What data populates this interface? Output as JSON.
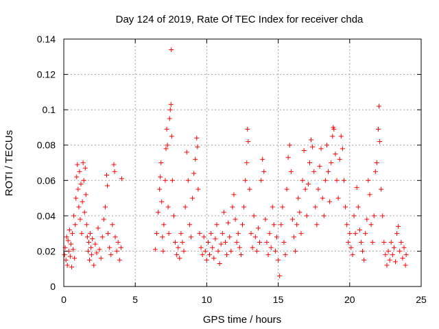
{
  "chart_data": {
    "type": "scatter",
    "title": "Day 124 of 2019, Rate Of TEC Index for receiver chda",
    "xlabel": "GPS time / hours",
    "ylabel": "ROTI / TECUs",
    "xlim": [
      0,
      25
    ],
    "ylim": [
      0,
      0.14
    ],
    "x_ticks": [
      0,
      5,
      10,
      15,
      20,
      25
    ],
    "x_tick_labels": [
      "0",
      "5",
      "10",
      "15",
      "20",
      "25"
    ],
    "y_ticks": [
      0,
      0.02,
      0.04,
      0.06,
      0.08,
      0.1,
      0.12,
      0.14
    ],
    "y_tick_labels": [
      "0",
      "0.02",
      "0.04",
      "0.06",
      "0.08",
      "0.1",
      "0.12",
      "0.14"
    ],
    "grid": true,
    "marker": "plus",
    "color": "#ff0000",
    "data_gap_hours": [
      4.1,
      6.3
    ],
    "series": [
      {
        "name": "ROTI",
        "points": [
          [
            0.05,
            0.018
          ],
          [
            0.1,
            0.022
          ],
          [
            0.15,
            0.015
          ],
          [
            0.2,
            0.028
          ],
          [
            0.25,
            0.012
          ],
          [
            0.3,
            0.026
          ],
          [
            0.35,
            0.02
          ],
          [
            0.4,
            0.032
          ],
          [
            0.45,
            0.017
          ],
          [
            0.5,
            0.024
          ],
          [
            0.55,
            0.011
          ],
          [
            0.6,
            0.03
          ],
          [
            0.65,
            0.021
          ],
          [
            0.7,
            0.04
          ],
          [
            0.75,
            0.016
          ],
          [
            0.8,
            0.035
          ],
          [
            0.85,
            0.05
          ],
          [
            0.9,
            0.062
          ],
          [
            0.95,
            0.069
          ],
          [
            1.0,
            0.055
          ],
          [
            1.05,
            0.045
          ],
          [
            1.1,
            0.065
          ],
          [
            1.15,
            0.038
          ],
          [
            1.2,
            0.058
          ],
          [
            1.25,
            0.03
          ],
          [
            1.3,
            0.048
          ],
          [
            1.35,
            0.07
          ],
          [
            1.4,
            0.06
          ],
          [
            1.45,
            0.042
          ],
          [
            1.5,
            0.067
          ],
          [
            1.55,
            0.052
          ],
          [
            1.6,
            0.035
          ],
          [
            1.65,
            0.028
          ],
          [
            1.7,
            0.02
          ],
          [
            1.75,
            0.025
          ],
          [
            1.8,
            0.015
          ],
          [
            1.85,
            0.03
          ],
          [
            1.9,
            0.022
          ],
          [
            1.95,
            0.018
          ],
          [
            2.0,
            0.027
          ],
          [
            2.1,
            0.012
          ],
          [
            2.2,
            0.024
          ],
          [
            2.3,
            0.019
          ],
          [
            2.4,
            0.033
          ],
          [
            2.5,
            0.021
          ],
          [
            2.6,
            0.016
          ],
          [
            2.7,
            0.028
          ],
          [
            2.8,
            0.038
          ],
          [
            2.9,
            0.045
          ],
          [
            3.0,
            0.063
          ],
          [
            3.05,
            0.057
          ],
          [
            3.1,
            0.03
          ],
          [
            3.2,
            0.022
          ],
          [
            3.3,
            0.018
          ],
          [
            3.4,
            0.035
          ],
          [
            3.5,
            0.069
          ],
          [
            3.55,
            0.065
          ],
          [
            3.6,
            0.028
          ],
          [
            3.7,
            0.02
          ],
          [
            3.8,
            0.025
          ],
          [
            3.9,
            0.015
          ],
          [
            4.0,
            0.022
          ],
          [
            4.05,
            0.061
          ],
          [
            6.4,
            0.021
          ],
          [
            6.5,
            0.03
          ],
          [
            6.6,
            0.042
          ],
          [
            6.7,
            0.055
          ],
          [
            6.75,
            0.062
          ],
          [
            6.8,
            0.07
          ],
          [
            6.85,
            0.048
          ],
          [
            6.9,
            0.028
          ],
          [
            6.95,
            0.02
          ],
          [
            7.0,
            0.035
          ],
          [
            7.1,
            0.06
          ],
          [
            7.15,
            0.078
          ],
          [
            7.2,
            0.089
          ],
          [
            7.25,
            0.08
          ],
          [
            7.3,
            0.045
          ],
          [
            7.35,
            0.03
          ],
          [
            7.4,
            0.095
          ],
          [
            7.45,
            0.1
          ],
          [
            7.5,
            0.103
          ],
          [
            7.52,
            0.134
          ],
          [
            7.55,
            0.085
          ],
          [
            7.6,
            0.06
          ],
          [
            7.7,
            0.04
          ],
          [
            7.8,
            0.025
          ],
          [
            7.9,
            0.018
          ],
          [
            8.0,
            0.022
          ],
          [
            8.1,
            0.016
          ],
          [
            8.2,
            0.03
          ],
          [
            8.3,
            0.025
          ],
          [
            8.4,
            0.02
          ],
          [
            8.5,
            0.045
          ],
          [
            8.6,
            0.076
          ],
          [
            8.7,
            0.06
          ],
          [
            8.8,
            0.035
          ],
          [
            8.9,
            0.028
          ],
          [
            9.0,
            0.05
          ],
          [
            9.1,
            0.064
          ],
          [
            9.2,
            0.072
          ],
          [
            9.3,
            0.084
          ],
          [
            9.35,
            0.079
          ],
          [
            9.4,
            0.055
          ],
          [
            9.5,
            0.03
          ],
          [
            9.6,
            0.022
          ],
          [
            9.7,
            0.018
          ],
          [
            9.8,
            0.028
          ],
          [
            9.9,
            0.02
          ],
          [
            10.0,
            0.015
          ],
          [
            10.1,
            0.025
          ],
          [
            10.2,
            0.018
          ],
          [
            10.3,
            0.03
          ],
          [
            10.4,
            0.022
          ],
          [
            10.5,
            0.016
          ],
          [
            10.6,
            0.027
          ],
          [
            10.7,
            0.035
          ],
          [
            10.8,
            0.02
          ],
          [
            10.9,
            0.013
          ],
          [
            11.0,
            0.024
          ],
          [
            11.1,
            0.03
          ],
          [
            11.2,
            0.042
          ],
          [
            11.3,
            0.025
          ],
          [
            11.4,
            0.018
          ],
          [
            11.5,
            0.036
          ],
          [
            11.6,
            0.028
          ],
          [
            11.7,
            0.02
          ],
          [
            11.8,
            0.045
          ],
          [
            11.9,
            0.052
          ],
          [
            12.0,
            0.038
          ],
          [
            12.1,
            0.025
          ],
          [
            12.2,
            0.03
          ],
          [
            12.3,
            0.022
          ],
          [
            12.4,
            0.018
          ],
          [
            12.5,
            0.035
          ],
          [
            12.6,
            0.045
          ],
          [
            12.7,
            0.06
          ],
          [
            12.8,
            0.07
          ],
          [
            12.85,
            0.089
          ],
          [
            12.9,
            0.082
          ],
          [
            13.0,
            0.055
          ],
          [
            13.1,
            0.03
          ],
          [
            13.2,
            0.022
          ],
          [
            13.3,
            0.04
          ],
          [
            13.4,
            0.028
          ],
          [
            13.5,
            0.02
          ],
          [
            13.6,
            0.033
          ],
          [
            13.7,
            0.025
          ],
          [
            13.8,
            0.06
          ],
          [
            13.9,
            0.072
          ],
          [
            14.0,
            0.065
          ],
          [
            14.1,
            0.038
          ],
          [
            14.2,
            0.025
          ],
          [
            14.3,
            0.018
          ],
          [
            14.4,
            0.03
          ],
          [
            14.5,
            0.022
          ],
          [
            14.6,
            0.045
          ],
          [
            14.7,
            0.035
          ],
          [
            14.8,
            0.02
          ],
          [
            14.9,
            0.028
          ],
          [
            15.0,
            0.015
          ],
          [
            15.1,
            0.006
          ],
          [
            15.2,
            0.035
          ],
          [
            15.3,
            0.045
          ],
          [
            15.4,
            0.025
          ],
          [
            15.5,
            0.018
          ],
          [
            15.6,
            0.055
          ],
          [
            15.7,
            0.073
          ],
          [
            15.8,
            0.08
          ],
          [
            15.9,
            0.065
          ],
          [
            16.0,
            0.038
          ],
          [
            16.1,
            0.028
          ],
          [
            16.2,
            0.02
          ],
          [
            16.3,
            0.035
          ],
          [
            16.4,
            0.05
          ],
          [
            16.5,
            0.042
          ],
          [
            16.6,
            0.03
          ],
          [
            16.7,
            0.06
          ],
          [
            16.8,
            0.077
          ],
          [
            16.9,
            0.055
          ],
          [
            17.0,
            0.04
          ],
          [
            17.1,
            0.058
          ],
          [
            17.2,
            0.07
          ],
          [
            17.3,
            0.083
          ],
          [
            17.4,
            0.079
          ],
          [
            17.5,
            0.065
          ],
          [
            17.6,
            0.045
          ],
          [
            17.7,
            0.035
          ],
          [
            17.8,
            0.055
          ],
          [
            17.9,
            0.068
          ],
          [
            18.0,
            0.078
          ],
          [
            18.1,
            0.05
          ],
          [
            18.2,
            0.04
          ],
          [
            18.3,
            0.06
          ],
          [
            18.4,
            0.08
          ],
          [
            18.5,
            0.065
          ],
          [
            18.6,
            0.048
          ],
          [
            18.7,
            0.07
          ],
          [
            18.8,
            0.085
          ],
          [
            18.85,
            0.09
          ],
          [
            18.9,
            0.089
          ],
          [
            19.0,
            0.075
          ],
          [
            19.1,
            0.06
          ],
          [
            19.2,
            0.05
          ],
          [
            19.3,
            0.072
          ],
          [
            19.4,
            0.085
          ],
          [
            19.5,
            0.078
          ],
          [
            19.6,
            0.06
          ],
          [
            19.7,
            0.045
          ],
          [
            19.8,
            0.035
          ],
          [
            19.9,
            0.025
          ],
          [
            20.0,
            0.03
          ],
          [
            20.1,
            0.022
          ],
          [
            20.2,
            0.018
          ],
          [
            20.3,
            0.04
          ],
          [
            20.4,
            0.03
          ],
          [
            20.5,
            0.056
          ],
          [
            20.6,
            0.045
          ],
          [
            20.7,
            0.032
          ],
          [
            20.8,
            0.025
          ],
          [
            20.9,
            0.02
          ],
          [
            21.0,
            0.015
          ],
          [
            21.1,
            0.03
          ],
          [
            21.2,
            0.038
          ],
          [
            21.3,
            0.06
          ],
          [
            21.4,
            0.052
          ],
          [
            21.5,
            0.035
          ],
          [
            21.6,
            0.025
          ],
          [
            21.7,
            0.04
          ],
          [
            21.8,
            0.065
          ],
          [
            21.9,
            0.07
          ],
          [
            22.0,
            0.089
          ],
          [
            22.05,
            0.102
          ],
          [
            22.1,
            0.082
          ],
          [
            22.2,
            0.055
          ],
          [
            22.3,
            0.04
          ],
          [
            22.4,
            0.025
          ],
          [
            22.5,
            0.018
          ],
          [
            22.6,
            0.012
          ],
          [
            22.7,
            0.02
          ],
          [
            22.8,
            0.015
          ],
          [
            22.9,
            0.025
          ],
          [
            23.0,
            0.018
          ],
          [
            23.1,
            0.022
          ],
          [
            23.2,
            0.014
          ],
          [
            23.3,
            0.03
          ],
          [
            23.4,
            0.034
          ],
          [
            23.5,
            0.02
          ],
          [
            23.6,
            0.025
          ],
          [
            23.7,
            0.016
          ],
          [
            23.8,
            0.022
          ],
          [
            23.9,
            0.012
          ],
          [
            23.95,
            0.018
          ]
        ]
      }
    ]
  }
}
